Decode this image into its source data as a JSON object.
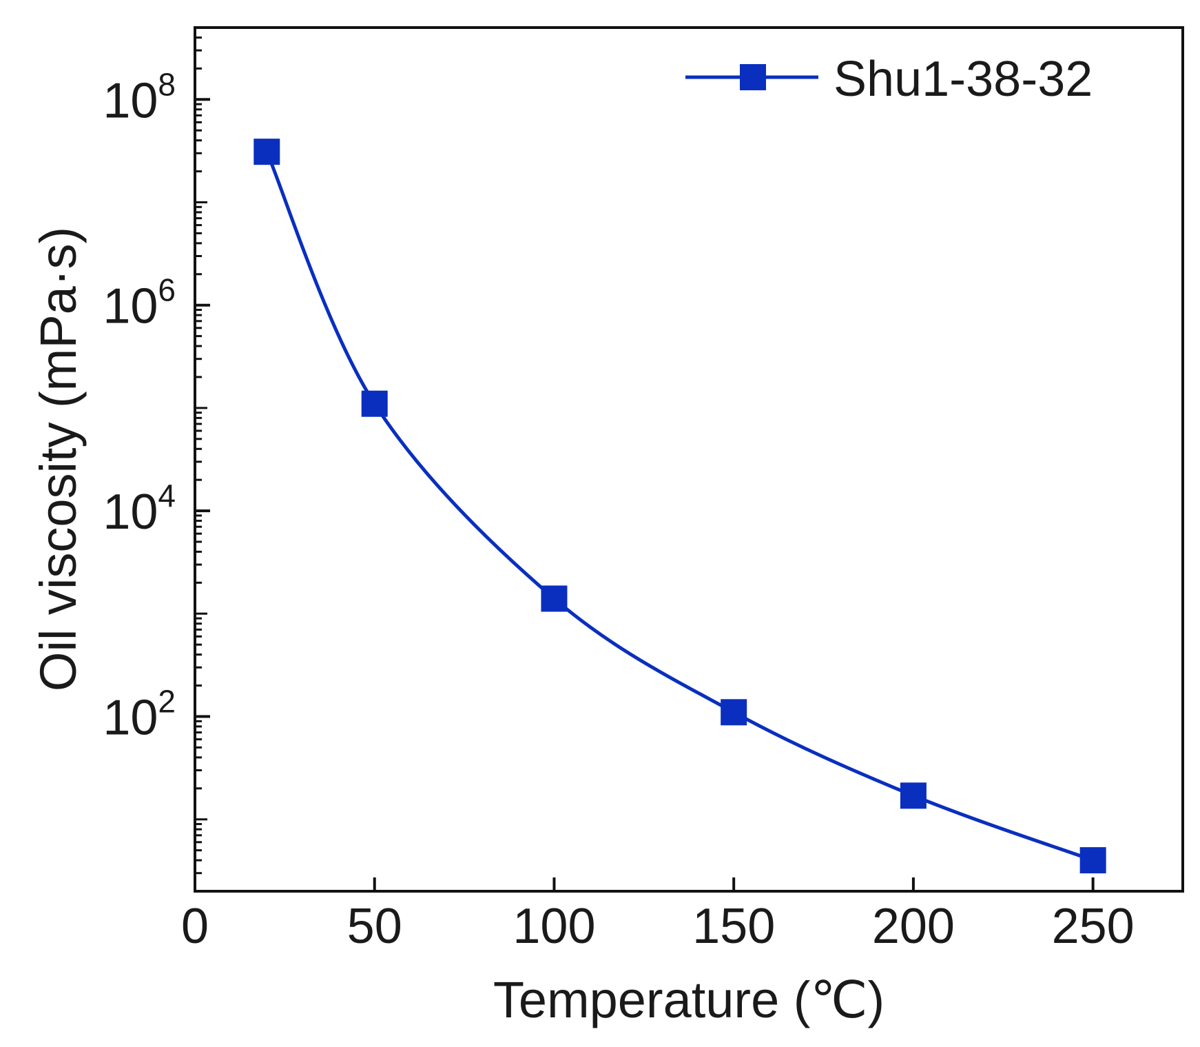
{
  "chart_data": {
    "type": "line",
    "xlabel": "Temperature (℃)",
    "ylabel": "Oil viscosity (mPa·s)",
    "xlim": [
      0,
      275
    ],
    "ylim": [
      2,
      500000000
    ],
    "y_scale": "log",
    "x_ticks": [
      0,
      50,
      100,
      150,
      200,
      250
    ],
    "x_tick_labels": [
      "0",
      "50",
      "100",
      "150",
      "200",
      "250"
    ],
    "y_ticks": [
      100,
      10000,
      1000000,
      100000000
    ],
    "y_tick_labels": [
      {
        "base": "10",
        "exp": "2"
      },
      {
        "base": "10",
        "exp": "4"
      },
      {
        "base": "10",
        "exp": "6"
      },
      {
        "base": "10",
        "exp": "8"
      }
    ],
    "legend_position": "top-right",
    "grid": false,
    "series": [
      {
        "name": "Shu1-38-32",
        "color": "#0a2fbf",
        "marker": "square",
        "x": [
          20,
          50,
          100,
          150,
          200,
          250
        ],
        "y": [
          31000000,
          110000,
          1400,
          110,
          17,
          4
        ]
      }
    ]
  }
}
